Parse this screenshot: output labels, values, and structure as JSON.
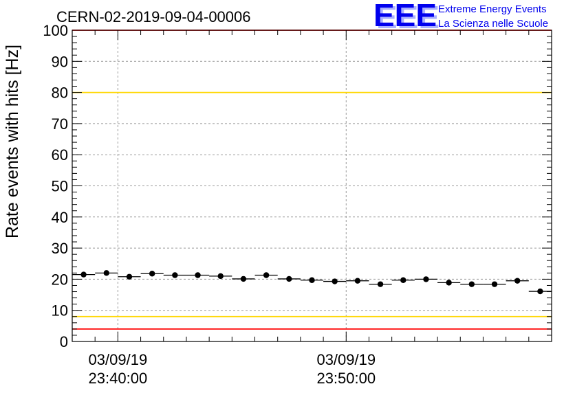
{
  "chart_data": {
    "type": "scatter",
    "title": "CERN-02-2019-09-04-00006",
    "ylabel": "Rate events with hits [Hz]",
    "xlabel": "",
    "ylim": [
      0,
      100
    ],
    "y_ticks": [
      0,
      10,
      20,
      30,
      40,
      50,
      60,
      70,
      80,
      90,
      100
    ],
    "x_ticks": [
      {
        "date": "03/09/19",
        "time": "23:40:00",
        "bin": 2.0
      },
      {
        "date": "03/09/19",
        "time": "23:50:00",
        "bin": 12.0
      }
    ],
    "x_bins": 21,
    "grid": true,
    "series": [
      {
        "values": [
          21.5,
          22.0,
          20.8,
          21.8,
          21.3,
          21.3,
          21.0,
          20.1,
          21.3,
          20.1,
          19.7,
          19.3,
          19.5,
          18.4,
          19.7,
          20.0,
          18.9,
          18.4,
          18.4,
          19.5,
          16.1
        ],
        "color": "#000000"
      }
    ],
    "reference_lines": [
      {
        "y": 100,
        "color": "#ff0000"
      },
      {
        "y": 80,
        "color": "#ffd700"
      },
      {
        "y": 8,
        "color": "#ffd700"
      },
      {
        "y": 4,
        "color": "#ff0000"
      }
    ]
  },
  "logo": {
    "main": "EEE",
    "line1": "Extreme Energy Events",
    "line2": "La Scienza nelle Scuole",
    "color": "#0000ee"
  }
}
